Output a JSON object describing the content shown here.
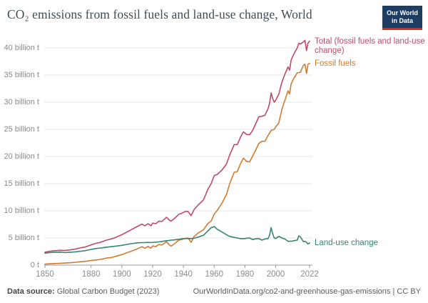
{
  "header": {
    "title": "CO₂ emissions from fossil fuels and land-use change, World",
    "logo": {
      "line1": "Our World",
      "line2": "in Data"
    }
  },
  "footer": {
    "source_label": "Data source:",
    "source_value": "Global Carbon Budget (2023)",
    "link": "OurWorldInData.org/co2-and-greenhouse-gas-emissions",
    "license": " | CC BY"
  },
  "colors": {
    "title": "#3e4c56",
    "axis_label": "#8b8b8b",
    "gridline": "#e4e4e4",
    "axis_line": "#999999",
    "logo_bg": "#1d3d63",
    "logo_accent": "#d8301f"
  },
  "chart_data": {
    "type": "line",
    "title": "CO₂ emissions from fossil fuels and land-use change, World",
    "xlabel": "",
    "ylabel": "",
    "unit": "billion t",
    "xlim": [
      1850,
      2022
    ],
    "ylim": [
      0,
      40
    ],
    "grid": true,
    "legend_position": "right-of-line-ends",
    "x_ticks": [
      1850,
      1880,
      1900,
      1920,
      1940,
      1960,
      1980,
      2000,
      2022
    ],
    "y_ticks": [
      {
        "value": 0,
        "label": "0 t"
      },
      {
        "value": 5,
        "label": "5 billion t"
      },
      {
        "value": 10,
        "label": "10 billion t"
      },
      {
        "value": 15,
        "label": "15 billion t"
      },
      {
        "value": 20,
        "label": "20 billion t"
      },
      {
        "value": 25,
        "label": "25 billion t"
      },
      {
        "value": 30,
        "label": "30 billion t"
      },
      {
        "value": 35,
        "label": "35 billion t"
      },
      {
        "value": 40,
        "label": "40 billion t"
      }
    ],
    "x": [
      1850,
      1853,
      1856,
      1860,
      1863,
      1866,
      1870,
      1873,
      1876,
      1880,
      1883,
      1886,
      1890,
      1893,
      1896,
      1900,
      1903,
      1906,
      1910,
      1913,
      1915,
      1917,
      1919,
      1920,
      1922,
      1924,
      1926,
      1929,
      1931,
      1932,
      1934,
      1937,
      1939,
      1941,
      1943,
      1945,
      1947,
      1950,
      1953,
      1956,
      1958,
      1960,
      1962,
      1965,
      1968,
      1970,
      1973,
      1975,
      1977,
      1979,
      1981,
      1983,
      1985,
      1987,
      1989,
      1991,
      1993,
      1995,
      1996,
      1997,
      1998,
      1999,
      2000,
      2002,
      2004,
      2006,
      2008,
      2009,
      2010,
      2012,
      2014,
      2015,
      2016,
      2018,
      2019,
      2020,
      2021,
      2022
    ],
    "series": [
      {
        "name": "Total (fossil fuels and land-use change)",
        "color": "#bf4a67",
        "values": [
          2.4,
          2.54,
          2.64,
          2.74,
          2.68,
          2.79,
          2.98,
          3.17,
          3.33,
          3.74,
          4.0,
          4.2,
          4.6,
          4.8,
          5.1,
          5.6,
          6.05,
          6.5,
          7.1,
          7.55,
          7.25,
          7.63,
          7.25,
          7.75,
          7.62,
          8.08,
          8.05,
          8.8,
          8.25,
          8.1,
          8.55,
          9.35,
          9.55,
          9.85,
          9.9,
          9.1,
          10.25,
          11.2,
          12.0,
          14.0,
          15.0,
          16.5,
          16.7,
          17.5,
          18.6,
          20.2,
          22.2,
          22.2,
          23.5,
          24.55,
          24.05,
          24.0,
          24.8,
          26.05,
          27.3,
          27.4,
          27.6,
          28.8,
          29.8,
          31.7,
          30.7,
          30.0,
          30.35,
          31.5,
          33.7,
          35.2,
          36.5,
          35.9,
          37.75,
          39.0,
          40.0,
          40.85,
          40.7,
          41.1,
          41.4,
          39.5,
          40.9,
          41.25
        ]
      },
      {
        "name": "Fossil fuels",
        "color": "#ce7c31",
        "values": [
          0.2,
          0.24,
          0.29,
          0.34,
          0.38,
          0.44,
          0.53,
          0.62,
          0.68,
          0.84,
          0.95,
          1.05,
          1.3,
          1.4,
          1.6,
          1.95,
          2.25,
          2.55,
          3.0,
          3.4,
          3.1,
          3.45,
          3.1,
          3.55,
          3.4,
          3.8,
          3.7,
          4.3,
          3.7,
          3.5,
          3.9,
          4.6,
          4.7,
          4.95,
          5.0,
          4.2,
          5.3,
          6.0,
          6.5,
          7.7,
          8.1,
          9.4,
          10.1,
          11.4,
          13.0,
          14.9,
          17.1,
          17.2,
          18.6,
          19.7,
          19.1,
          19.0,
          20.1,
          21.2,
          22.4,
          22.8,
          22.8,
          23.9,
          24.3,
          24.8,
          24.9,
          25.0,
          25.45,
          26.2,
          28.7,
          30.4,
          32.1,
          31.5,
          33.35,
          34.5,
          35.4,
          35.45,
          35.5,
          36.8,
          37.0,
          35.3,
          37.0,
          37.15
        ]
      },
      {
        "name": "Land-use change",
        "color": "#348672",
        "values": [
          2.2,
          2.3,
          2.35,
          2.4,
          2.3,
          2.35,
          2.45,
          2.55,
          2.65,
          2.9,
          3.05,
          3.15,
          3.3,
          3.4,
          3.5,
          3.65,
          3.8,
          3.95,
          4.1,
          4.15,
          4.15,
          4.18,
          4.15,
          4.2,
          4.22,
          4.28,
          4.35,
          4.5,
          4.55,
          4.6,
          4.65,
          4.75,
          4.85,
          4.9,
          4.9,
          4.9,
          4.95,
          5.2,
          5.5,
          6.3,
          6.9,
          7.1,
          6.6,
          6.1,
          5.6,
          5.3,
          5.1,
          5.0,
          4.9,
          4.85,
          4.95,
          5.0,
          4.7,
          4.85,
          4.9,
          4.6,
          4.8,
          4.9,
          5.5,
          6.9,
          5.8,
          5.0,
          4.9,
          5.3,
          5.0,
          4.8,
          4.4,
          4.4,
          4.4,
          4.5,
          4.6,
          5.4,
          5.2,
          4.3,
          4.4,
          4.2,
          3.9,
          4.1
        ]
      }
    ]
  }
}
